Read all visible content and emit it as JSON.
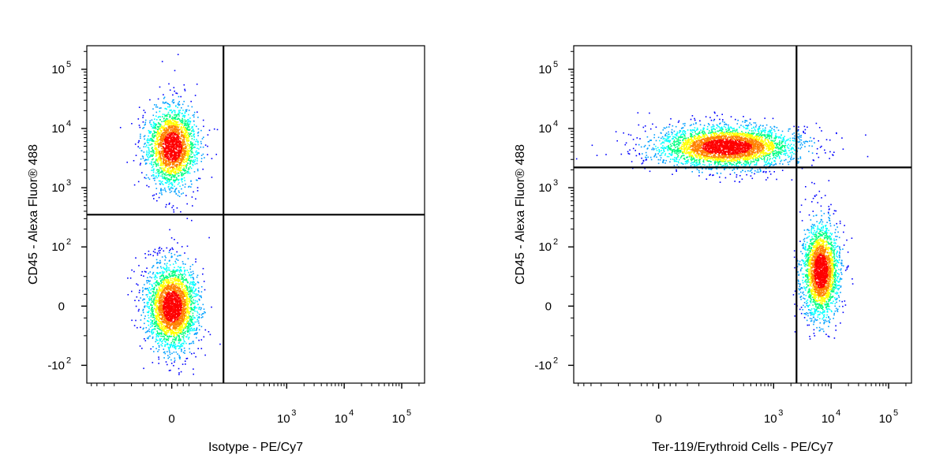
{
  "chart_data": [
    {
      "type": "scatter",
      "subtype": "flow-cytometry-density-dot-plot",
      "xlabel": "Isotype - PE/Cy7",
      "ylabel": "CD45 - Alexa Fluor® 488",
      "x_scale": "biexponential",
      "y_scale": "biexponential",
      "xlim": [
        -300,
        250000
      ],
      "ylim": [
        -200,
        250000
      ],
      "x_ticks": [
        {
          "value": 0,
          "base": "0",
          "exp": ""
        },
        {
          "value": 1000,
          "base": "10",
          "exp": "3"
        },
        {
          "value": 10000,
          "base": "10",
          "exp": "4"
        },
        {
          "value": 100000,
          "base": "10",
          "exp": "5"
        }
      ],
      "y_ticks": [
        {
          "value": -100,
          "base": "-10",
          "exp": "2"
        },
        {
          "value": 0,
          "base": "0",
          "exp": ""
        },
        {
          "value": 100,
          "base": "10",
          "exp": "2"
        },
        {
          "value": 1000,
          "base": "10",
          "exp": "3"
        },
        {
          "value": 10000,
          "base": "10",
          "exp": "4"
        },
        {
          "value": 100000,
          "base": "10",
          "exp": "5"
        }
      ],
      "gates": {
        "x_threshold": 90,
        "y_threshold": 350
      },
      "populations": [
        {
          "x_center": 0,
          "y_center": 5000,
          "share": 0.44
        },
        {
          "x_center": 0,
          "y_center": 0,
          "share": 0.56
        }
      ],
      "grid": false,
      "legend": "none"
    },
    {
      "type": "scatter",
      "subtype": "flow-cytometry-density-dot-plot",
      "xlabel": "Ter-119/Erythroid Cells - PE/Cy7",
      "ylabel": "CD45 - Alexa Fluor® 488",
      "x_scale": "biexponential",
      "y_scale": "biexponential",
      "xlim": [
        -300,
        250000
      ],
      "ylim": [
        -200,
        250000
      ],
      "x_ticks": [
        {
          "value": 0,
          "base": "0",
          "exp": ""
        },
        {
          "value": 1000,
          "base": "10",
          "exp": "3"
        },
        {
          "value": 10000,
          "base": "10",
          "exp": "4"
        },
        {
          "value": 100000,
          "base": "10",
          "exp": "5"
        }
      ],
      "y_ticks": [
        {
          "value": -100,
          "base": "-10",
          "exp": "2"
        },
        {
          "value": 0,
          "base": "0",
          "exp": ""
        },
        {
          "value": 100,
          "base": "10",
          "exp": "2"
        },
        {
          "value": 1000,
          "base": "10",
          "exp": "3"
        },
        {
          "value": 10000,
          "base": "10",
          "exp": "4"
        },
        {
          "value": 100000,
          "base": "10",
          "exp": "5"
        }
      ],
      "gates": {
        "x_threshold": 2500,
        "y_threshold": 2200
      },
      "populations": [
        {
          "x_center": 150,
          "y_center": 5000,
          "share": 0.6
        },
        {
          "x_center": 6500,
          "y_center": 60,
          "share": 0.4
        }
      ],
      "grid": false,
      "legend": "none"
    }
  ],
  "colors": {
    "density_scale": [
      "#0000ff",
      "#00a0ff",
      "#00ffff",
      "#00ff80",
      "#ffff00",
      "#ff8000",
      "#ff0000"
    ],
    "gate_line": "#000000",
    "axis": "#000000",
    "background": "#ffffff"
  }
}
